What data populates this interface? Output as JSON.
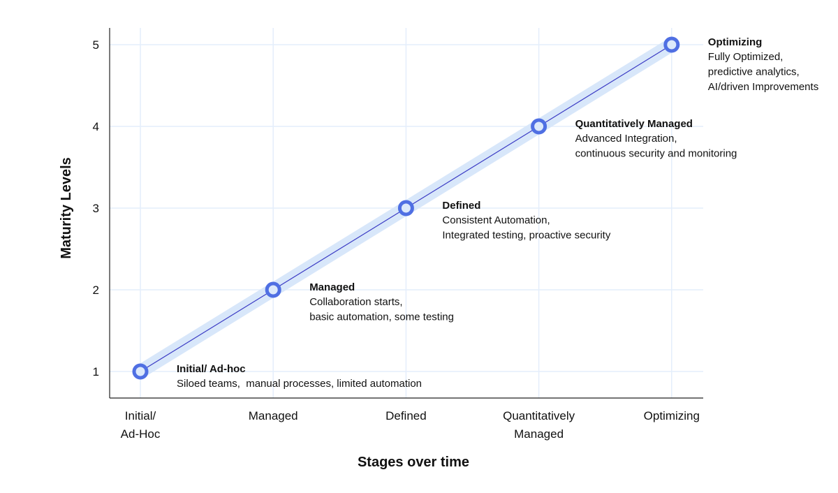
{
  "chart_data": {
    "type": "line",
    "title": "",
    "xlabel": "Stages over time",
    "ylabel": "Maturity Levels",
    "categories": [
      [
        "Initial/",
        "Ad-Hoc"
      ],
      [
        "Managed"
      ],
      [
        "Defined"
      ],
      [
        "Quantitatively",
        "Managed"
      ],
      [
        "Optimizing"
      ]
    ],
    "values": [
      1,
      2,
      3,
      4,
      5
    ],
    "yticks": [
      1,
      2,
      3,
      4,
      5
    ],
    "ylim": [
      0.7,
      5.2
    ],
    "grid": true,
    "annotations": [
      {
        "title": "Initial/ Ad-hoc",
        "lines": [
          "Siloed teams,  manual processes, limited automation"
        ]
      },
      {
        "title": "Managed",
        "lines": [
          "Collaboration starts,",
          "basic automation, some testing"
        ]
      },
      {
        "title": "Defined",
        "lines": [
          "Consistent Automation,",
          "Integrated testing, proactive security"
        ]
      },
      {
        "title": "Quantitatively Managed",
        "lines": [
          "Advanced Integration,",
          "continuous security and monitoring"
        ]
      },
      {
        "title": "Optimizing",
        "lines": [
          "Fully Optimized,",
          "predictive analytics,",
          "AI/driven Improvements"
        ]
      }
    ],
    "colors": {
      "line": "#3a3ac4",
      "band": "#d8e7fa",
      "marker": "#4f6fe3",
      "marker_fill": "#dce9fb",
      "grid": "#e4eefb",
      "axis": "#222222"
    }
  }
}
